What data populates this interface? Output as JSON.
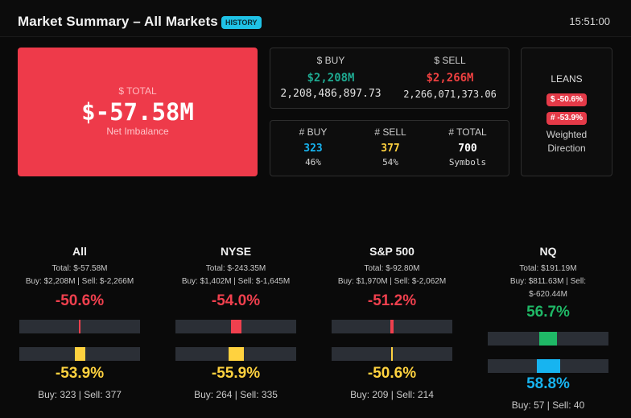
{
  "header": {
    "title": "Market Summary – All Markets",
    "badge": "HISTORY",
    "time": "15:51:00"
  },
  "total": {
    "label": "$ TOTAL",
    "value": "$-57.58M",
    "sub": "Net Imbalance"
  },
  "dollars": {
    "buy_label": "$ BUY",
    "buy_short": "$2,208M",
    "buy_full": "2,208,486,897.73",
    "sell_label": "$ SELL",
    "sell_short": "$2,266M",
    "sell_full": "2,266,071,373.06"
  },
  "counts": {
    "buy_label": "# BUY",
    "buy_value": "323",
    "buy_pct": "46%",
    "sell_label": "# SELL",
    "sell_value": "377",
    "sell_pct": "54%",
    "total_label": "# TOTAL",
    "total_value": "700",
    "total_sub": "Symbols"
  },
  "leans": {
    "title": "LEANS",
    "dollar_pill": "$ -50.6%",
    "count_pill": "# -53.9%",
    "sub1": "Weighted",
    "sub2": "Direction"
  },
  "markets": [
    {
      "name": "All",
      "total": "Total: $-57.58M",
      "buysell": "Buy: $2,208M | Sell: $-2,266M",
      "buysell2": "",
      "pct1": "-50.6%",
      "pct2": "-53.9%",
      "counts": "Buy: 323 | Sell: 377",
      "level1": -0.506,
      "level2": -0.539
    },
    {
      "name": "NYSE",
      "total": "Total: $-243.35M",
      "buysell": "Buy: $1,402M | Sell: $-1,645M",
      "buysell2": "",
      "pct1": "-54.0%",
      "pct2": "-55.9%",
      "counts": "Buy: 264 | Sell: 335",
      "level1": -0.54,
      "level2": -0.559
    },
    {
      "name": "S&P 500",
      "total": "Total: $-92.80M",
      "buysell": "Buy: $1,970M | Sell: $-2,062M",
      "buysell2": "",
      "pct1": "-51.2%",
      "pct2": "-50.6%",
      "counts": "Buy: 209 | Sell: 214",
      "level1": -0.512,
      "level2": -0.506
    },
    {
      "name": "NQ",
      "total": "Total: $191.19M",
      "buysell": "Buy: $811.63M | Sell:",
      "buysell2": "$-620.44M",
      "pct1": "56.7%",
      "pct2": "58.8%",
      "counts": "Buy: 57 | Sell: 40",
      "level1": 0.567,
      "level2": 0.588
    }
  ],
  "colors": {
    "red": "#f0404e",
    "yellow": "#ffd23f",
    "green": "#1fb866",
    "blue": "#17b4f0",
    "teal": "#1ea890",
    "sell_red": "#ee4040"
  }
}
